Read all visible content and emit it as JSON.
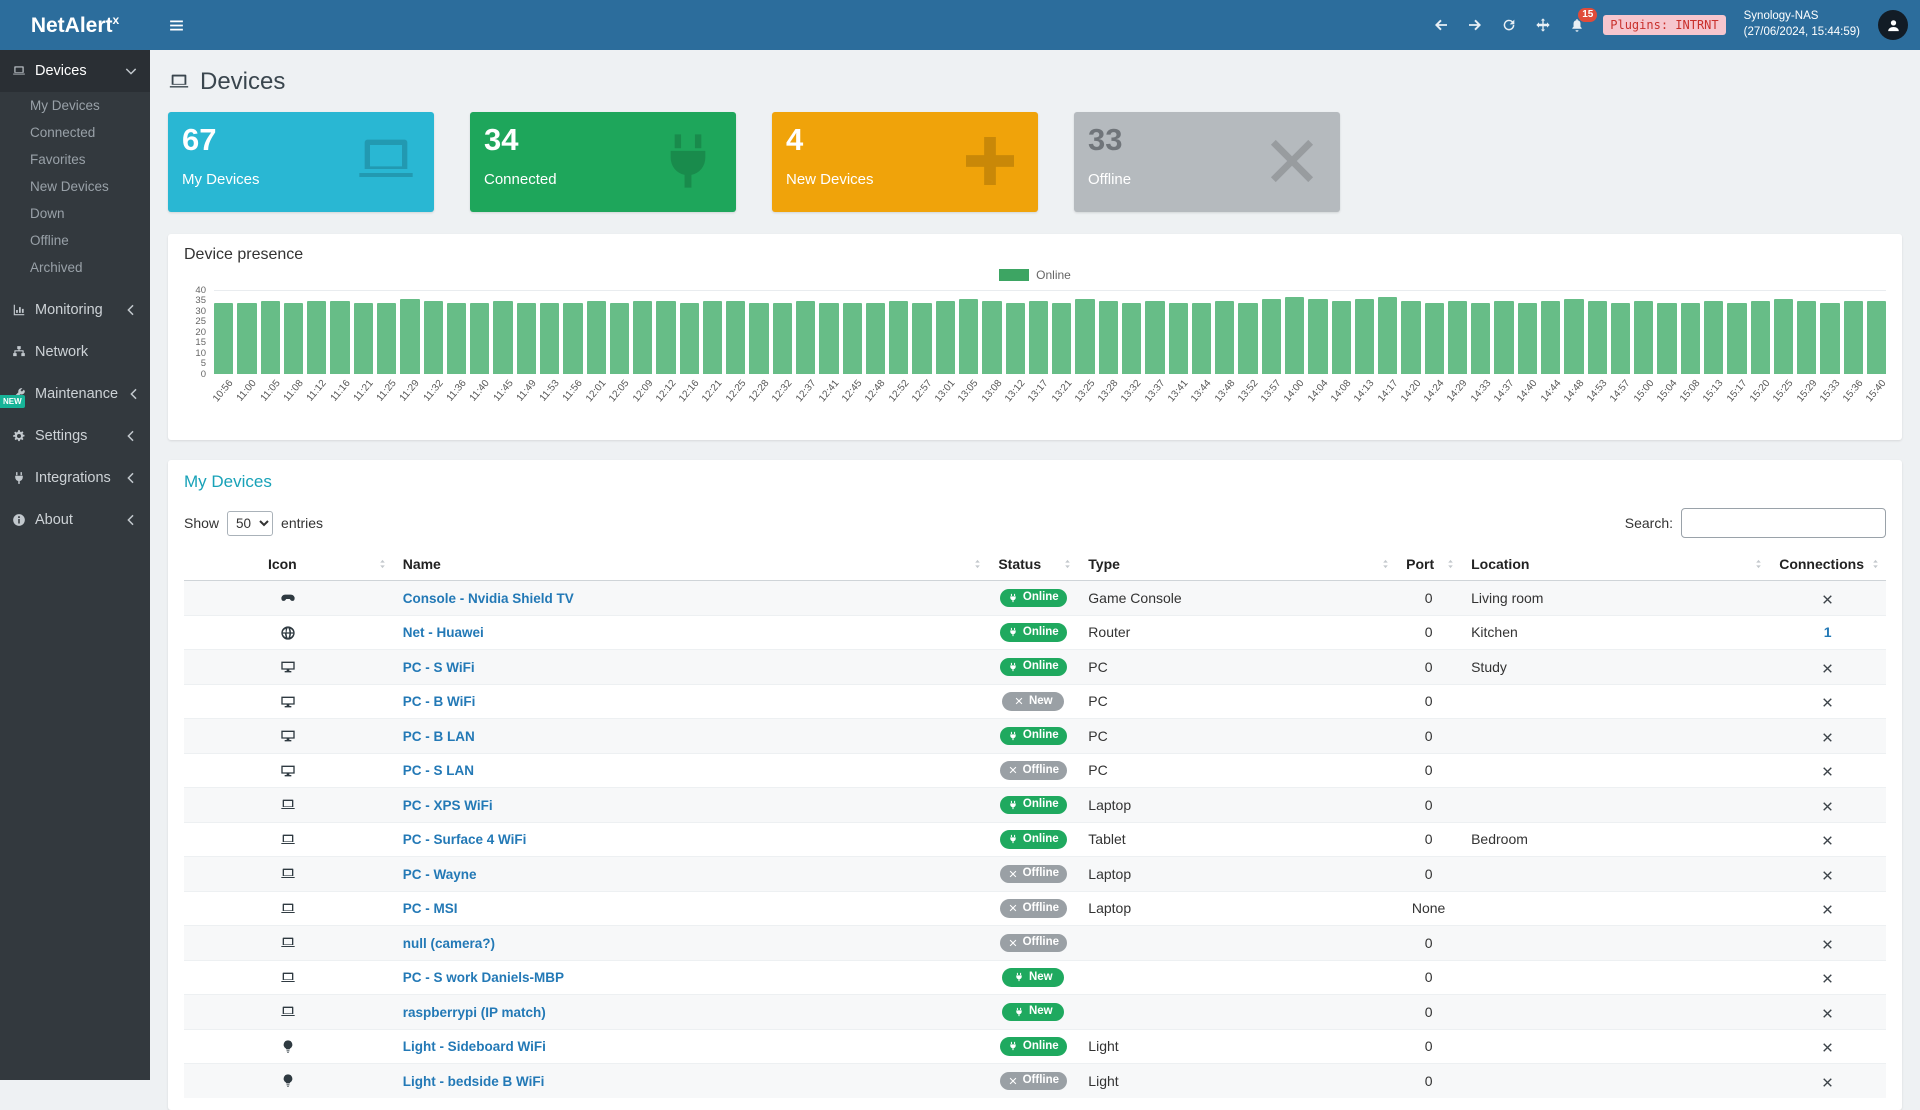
{
  "colors": {
    "topbar": "#2c6d9c",
    "sidebar": "#33393e",
    "accent_teal": "#18a2b8",
    "link_blue": "#2379b6",
    "badge_green": "#1fa95f",
    "badge_gray": "#9aa0a5",
    "online_bar": "#67bd87"
  },
  "topbar": {
    "brand": "NetAlert",
    "brand_sup": "x",
    "notifications_count": "15",
    "plugins_label": "Plugins: INTRNT",
    "device_name": "Synology-NAS",
    "timestamp": "(27/06/2024, 15:44:59)"
  },
  "sidebar": {
    "new_badge": "NEW",
    "items": [
      {
        "id": "devices",
        "label": "Devices",
        "icon": "laptop",
        "chevron": "down",
        "active": true,
        "children": [
          "My Devices",
          "Connected",
          "Favorites",
          "New Devices",
          "Down",
          "Offline",
          "Archived"
        ]
      },
      {
        "id": "monitoring",
        "label": "Monitoring",
        "icon": "chart",
        "chevron": "left"
      },
      {
        "id": "network",
        "label": "Network",
        "icon": "network",
        "chevron": null
      },
      {
        "id": "maintenance",
        "label": "Maintenance",
        "icon": "wrench",
        "chevron": "left"
      },
      {
        "id": "settings",
        "label": "Settings",
        "icon": "gear",
        "chevron": "left"
      },
      {
        "id": "integrations",
        "label": "Integrations",
        "icon": "plug",
        "chevron": "left"
      },
      {
        "id": "about",
        "label": "About",
        "icon": "info",
        "chevron": "left"
      }
    ]
  },
  "page": {
    "title": "Devices"
  },
  "infoboxes": [
    {
      "value": "67",
      "label": "My Devices",
      "icon": "laptop",
      "color": "#29b7d3",
      "muted_value": false
    },
    {
      "value": "34",
      "label": "Connected",
      "icon": "plug",
      "color": "#1ea65b",
      "muted_value": false
    },
    {
      "value": "4",
      "label": "New Devices",
      "icon": "plus",
      "color": "#f0a30a",
      "muted_value": false
    },
    {
      "value": "33",
      "label": "Offline",
      "icon": "xmark",
      "color": "#b5babe",
      "muted_value": true
    }
  ],
  "presence": {
    "title": "Device presence",
    "chart_data": {
      "type": "bar",
      "legend": "Online",
      "legend_position": "top-center",
      "bar_color": "#67bd87",
      "legend_color": "#3da563",
      "ylim": [
        0,
        40
      ],
      "ytick_step": 5,
      "grid": false,
      "x": [
        "10:56",
        "11:00",
        "11:05",
        "11:08",
        "11:12",
        "11:16",
        "11:21",
        "11:25",
        "11:29",
        "11:32",
        "11:36",
        "11:40",
        "11:45",
        "11:49",
        "11:53",
        "11:56",
        "12:01",
        "12:05",
        "12:09",
        "12:12",
        "12:16",
        "12:21",
        "12:25",
        "12:28",
        "12:32",
        "12:37",
        "12:41",
        "12:45",
        "12:48",
        "12:52",
        "12:57",
        "13:01",
        "13:05",
        "13:08",
        "13:12",
        "13:17",
        "13:21",
        "13:25",
        "13:28",
        "13:32",
        "13:37",
        "13:41",
        "13:44",
        "13:48",
        "13:52",
        "13:57",
        "14:00",
        "14:04",
        "14:08",
        "14:13",
        "14:17",
        "14:20",
        "14:24",
        "14:29",
        "14:33",
        "14:37",
        "14:40",
        "14:44",
        "14:48",
        "14:53",
        "14:57",
        "15:00",
        "15:04",
        "15:08",
        "15:13",
        "15:17",
        "15:20",
        "15:25",
        "15:29",
        "15:33",
        "15:36",
        "15:40"
      ],
      "values": [
        34,
        34,
        35,
        34,
        35,
        35,
        34,
        34,
        36,
        35,
        34,
        34,
        35,
        34,
        34,
        34,
        35,
        34,
        35,
        35,
        34,
        35,
        35,
        34,
        34,
        35,
        34,
        34,
        34,
        35,
        34,
        35,
        36,
        35,
        34,
        35,
        34,
        36,
        35,
        34,
        35,
        34,
        34,
        35,
        34,
        36,
        37,
        36,
        35,
        36,
        37,
        35,
        34,
        35,
        34,
        35,
        34,
        35,
        36,
        35,
        34,
        35,
        34,
        34,
        35,
        34,
        35,
        36,
        35,
        34,
        35,
        35
      ]
    }
  },
  "devices_table": {
    "title": "My Devices",
    "show_label": "Show",
    "entries_label": "entries",
    "page_length": "50",
    "page_length_options": [
      "50"
    ],
    "search_label": "Search:",
    "search_value": "",
    "columns": [
      "Icon",
      "Name",
      "Status",
      "Type",
      "Port",
      "Location",
      "Connections"
    ],
    "rows": [
      {
        "icon": "gamepad",
        "name": "Console - Nvidia Shield TV",
        "status": {
          "label": "Online",
          "variant": "green",
          "icon": "plug"
        },
        "type": "Game Console",
        "port": "0",
        "location": "Living room",
        "connections": {
          "kind": "icon",
          "value": "x"
        }
      },
      {
        "icon": "globe",
        "name": "Net - Huawei",
        "status": {
          "label": "Online",
          "variant": "green",
          "icon": "plug"
        },
        "type": "Router",
        "port": "0",
        "location": "Kitchen",
        "connections": {
          "kind": "link",
          "value": "1"
        }
      },
      {
        "icon": "desktop",
        "name": "PC - S WiFi",
        "status": {
          "label": "Online",
          "variant": "green",
          "icon": "plug"
        },
        "type": "PC",
        "port": "0",
        "location": "Study",
        "connections": {
          "kind": "icon",
          "value": "x"
        }
      },
      {
        "icon": "desktop",
        "name": "PC - B WiFi",
        "status": {
          "label": "New",
          "variant": "gray",
          "icon": "xmark"
        },
        "type": "PC",
        "port": "0",
        "location": "",
        "connections": {
          "kind": "icon",
          "value": "x"
        }
      },
      {
        "icon": "desktop",
        "name": "PC - B LAN",
        "status": {
          "label": "Online",
          "variant": "green",
          "icon": "plug"
        },
        "type": "PC",
        "port": "0",
        "location": "",
        "connections": {
          "kind": "icon",
          "value": "x"
        }
      },
      {
        "icon": "desktop",
        "name": "PC - S LAN",
        "status": {
          "label": "Offline",
          "variant": "gray",
          "icon": "xmark"
        },
        "type": "PC",
        "port": "0",
        "location": "",
        "connections": {
          "kind": "icon",
          "value": "x"
        }
      },
      {
        "icon": "laptop",
        "name": "PC - XPS WiFi",
        "status": {
          "label": "Online",
          "variant": "green",
          "icon": "plug"
        },
        "type": "Laptop",
        "port": "0",
        "location": "",
        "connections": {
          "kind": "icon",
          "value": "x"
        }
      },
      {
        "icon": "laptop",
        "name": "PC - Surface 4 WiFi",
        "status": {
          "label": "Online",
          "variant": "green",
          "icon": "plug"
        },
        "type": "Tablet",
        "port": "0",
        "location": "Bedroom",
        "connections": {
          "kind": "icon",
          "value": "x"
        }
      },
      {
        "icon": "laptop",
        "name": "PC - Wayne",
        "status": {
          "label": "Offline",
          "variant": "gray",
          "icon": "xmark"
        },
        "type": "Laptop",
        "port": "0",
        "location": "",
        "connections": {
          "kind": "icon",
          "value": "x"
        }
      },
      {
        "icon": "laptop",
        "name": "PC - MSI",
        "status": {
          "label": "Offline",
          "variant": "gray",
          "icon": "xmark"
        },
        "type": "Laptop",
        "port": "None",
        "location": "",
        "connections": {
          "kind": "icon",
          "value": "x"
        }
      },
      {
        "icon": "laptop",
        "name": "null (camera?)",
        "status": {
          "label": "Offline",
          "variant": "gray",
          "icon": "xmark"
        },
        "type": "",
        "port": "0",
        "location": "",
        "connections": {
          "kind": "icon",
          "value": "x"
        }
      },
      {
        "icon": "laptop",
        "name": "PC - S work Daniels-MBP",
        "status": {
          "label": "New",
          "variant": "green",
          "icon": "plug"
        },
        "type": "",
        "port": "0",
        "location": "",
        "connections": {
          "kind": "icon",
          "value": "x"
        }
      },
      {
        "icon": "laptop",
        "name": "raspberrypi (IP match)",
        "status": {
          "label": "New",
          "variant": "green",
          "icon": "plug"
        },
        "type": "",
        "port": "0",
        "location": "",
        "connections": {
          "kind": "icon",
          "value": "x"
        }
      },
      {
        "icon": "lightbulb",
        "name": "Light - Sideboard WiFi",
        "status": {
          "label": "Online",
          "variant": "green",
          "icon": "plug"
        },
        "type": "Light",
        "port": "0",
        "location": "",
        "connections": {
          "kind": "icon",
          "value": "x"
        }
      },
      {
        "icon": "lightbulb",
        "name": "Light - bedside B WiFi",
        "status": {
          "label": "Offline",
          "variant": "gray",
          "icon": "xmark"
        },
        "type": "Light",
        "port": "0",
        "location": "",
        "connections": {
          "kind": "icon",
          "value": "x"
        }
      }
    ]
  }
}
